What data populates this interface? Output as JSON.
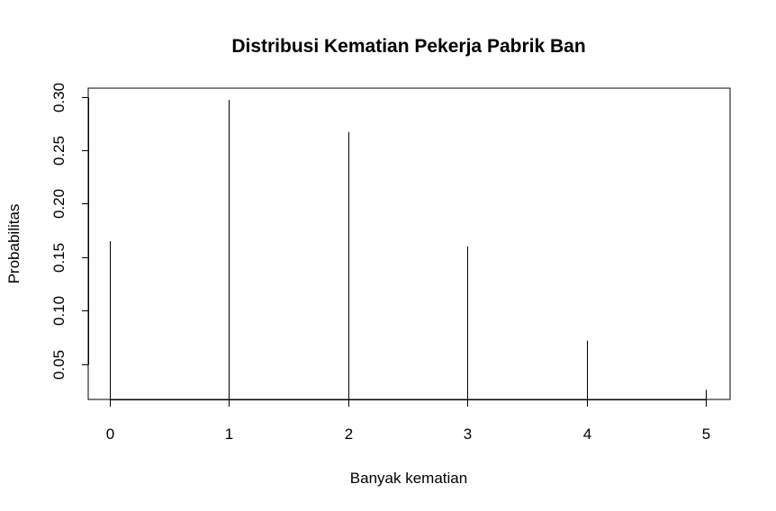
{
  "chart_data": {
    "type": "bar",
    "style": "histogram-spikes",
    "title": "Distribusi Kematian Pekerja Pabrik Ban",
    "xlabel": "Banyak kematian",
    "ylabel": "Probabilitas",
    "x": [
      0,
      1,
      2,
      3,
      4,
      5
    ],
    "values": [
      0.165,
      0.297,
      0.267,
      0.16,
      0.072,
      0.026
    ],
    "x_ticks": [
      "0",
      "1",
      "2",
      "3",
      "4",
      "5"
    ],
    "y_ticks": [
      "0.05",
      "0.10",
      "0.15",
      "0.20",
      "0.25",
      "0.30"
    ],
    "y_tick_values": [
      0.05,
      0.1,
      0.15,
      0.2,
      0.25,
      0.3
    ],
    "xlim": [
      -0.18,
      5.2
    ],
    "ylim": [
      0.017,
      0.308
    ],
    "grid": false,
    "legend": "none",
    "line_color": "#000000"
  }
}
